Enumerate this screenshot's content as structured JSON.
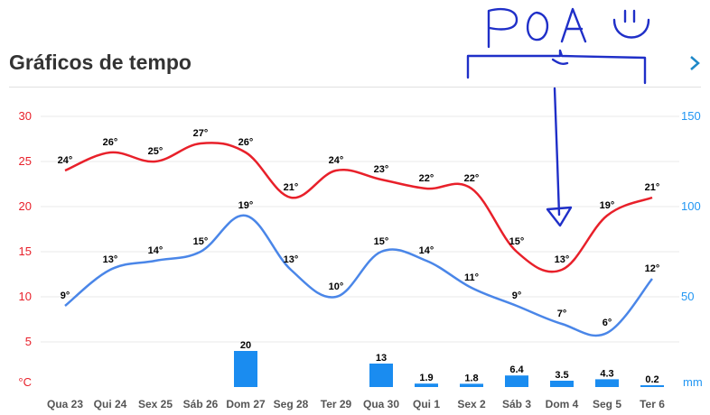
{
  "header": {
    "title": "Gráficos de tempo",
    "chevron_icon": "chevron-right-icon"
  },
  "annotation": {
    "text": "POA",
    "emoji": "☺",
    "color": "#1f2fc8"
  },
  "colors": {
    "max_line": "#e8202a",
    "min_line": "#4a86e8",
    "precip_bar": "#1a8cf0",
    "left_axis": "#e8202a",
    "right_axis": "#2196f3",
    "grid": "#e8e8e8"
  },
  "chart_data": {
    "type": "line",
    "categories": [
      "Qua 23",
      "Qui 24",
      "Sex 25",
      "Sáb 26",
      "Dom 27",
      "Seg 28",
      "Ter 29",
      "Qua 30",
      "Qui 1",
      "Sex 2",
      "Sáb 3",
      "Dom 4",
      "Seg 5",
      "Ter 6"
    ],
    "series": [
      {
        "values": [
          24,
          26,
          25,
          27,
          26,
          21,
          24,
          23,
          22,
          22,
          15,
          13,
          19,
          21
        ],
        "labels": [
          "24°",
          "26°",
          "25°",
          "27°",
          "26°",
          "21°",
          "24°",
          "23°",
          "22°",
          "22°",
          "15°",
          "13°",
          "19°",
          "21°"
        ],
        "color": "#e8202a",
        "axis": "left"
      },
      {
        "values": [
          9,
          13,
          14,
          15,
          19,
          13,
          10,
          15,
          14,
          11,
          9,
          7,
          6,
          12
        ],
        "labels": [
          "9°",
          "13°",
          "14°",
          "15°",
          "19°",
          "13°",
          "10°",
          "15°",
          "14°",
          "11°",
          "9°",
          "7°",
          "6°",
          "12°"
        ],
        "color": "#4a86e8",
        "axis": "left"
      },
      {
        "type": "bar",
        "values": [
          0,
          0,
          0,
          0,
          20,
          0,
          0,
          13,
          1.9,
          1.8,
          6.4,
          3.5,
          4.3,
          0.2
        ],
        "labels": [
          "",
          "",
          "",
          "",
          "20",
          "",
          "",
          "13",
          "1.9",
          "1.8",
          "6.4",
          "3.5",
          "4.3",
          "0.2"
        ],
        "color": "#1a8cf0",
        "axis": "right"
      }
    ],
    "left_axis": {
      "unit": "°C",
      "ticks": [
        "30",
        "25",
        "20",
        "15",
        "10",
        "5"
      ],
      "ylim": [
        0,
        30
      ]
    },
    "right_axis": {
      "unit": "mm",
      "ticks": [
        "150",
        "100",
        "50"
      ],
      "ylim": [
        0,
        150
      ]
    },
    "grid": true
  }
}
